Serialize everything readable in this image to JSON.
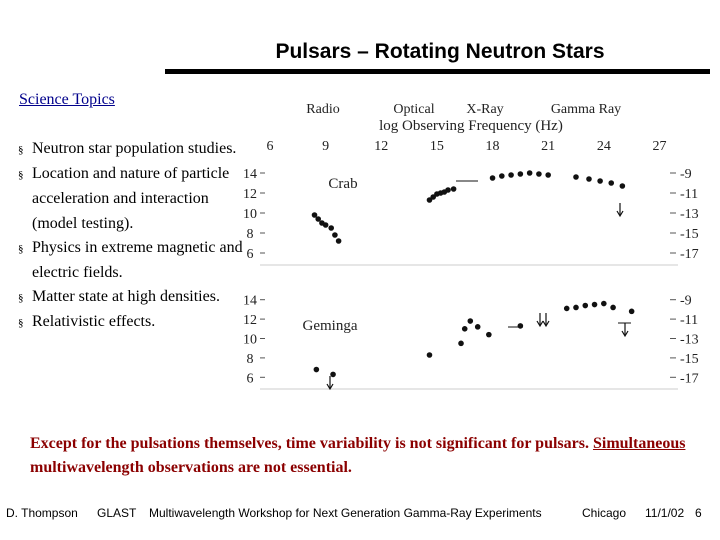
{
  "slide": {
    "title": "Pulsars – Rotating Neutron Stars",
    "section": "Science Topics",
    "topics": [
      "Neutron star population studies.",
      "Location and nature of particle acceleration and interaction (model testing).",
      "Physics in extreme magnetic and electric fields.",
      "Matter state at high densities.",
      "Relativistic effects."
    ],
    "bullet_glyph": "§",
    "note_part1": "Except for the pulsations themselves, time variability is not significant for pulsars.  ",
    "note_underlined": "Simultaneous",
    "note_part2": " multiwavelength observations are not essential."
  },
  "figure": {
    "band_labels": [
      "Radio",
      "Optical",
      "X-Ray",
      "Gamma Ray"
    ],
    "xlabel": "log Observing Frequency (Hz)",
    "x_ticks": [
      "6",
      "9",
      "12",
      "15",
      "18",
      "21",
      "24",
      "27"
    ],
    "left_ticks": [
      "14",
      "12",
      "10",
      "8",
      "6"
    ],
    "right_ticks": [
      "-9",
      "-11",
      "-13",
      "-15",
      "-17"
    ],
    "panels": [
      {
        "name": "Crab"
      },
      {
        "name": "Geminga"
      }
    ]
  },
  "chart_data": {
    "type": "scatter",
    "title": "",
    "xlabel": "log Observing Frequency (Hz)",
    "xlim": [
      6,
      28
    ],
    "ylim_left": [
      5,
      15
    ],
    "ylim_right": [
      -18,
      -8
    ],
    "panels": [
      {
        "name": "Crab",
        "x": [
          8.4,
          8.6,
          8.8,
          9.0,
          9.3,
          9.5,
          9.7,
          14.6,
          14.8,
          15.0,
          15.2,
          15.4,
          15.6,
          15.9,
          18.0,
          18.5,
          19.0,
          19.5,
          20.0,
          20.5,
          21.0,
          22.5,
          23.2,
          23.8,
          24.4,
          25.0
        ],
        "y": [
          9.8,
          9.4,
          9.0,
          8.8,
          8.5,
          7.8,
          7.2,
          11.3,
          11.6,
          11.9,
          12.0,
          12.1,
          12.3,
          12.4,
          13.5,
          13.7,
          13.8,
          13.9,
          14.0,
          13.9,
          13.8,
          13.6,
          13.4,
          13.2,
          13.0,
          12.7
        ]
      },
      {
        "name": "Geminga",
        "x": [
          8.5,
          9.4,
          14.6,
          16.3,
          16.5,
          16.8,
          17.2,
          17.8,
          19.5,
          22.0,
          22.5,
          23.0,
          23.5,
          24.0,
          24.5,
          25.5
        ],
        "y": [
          6.8,
          6.3,
          8.3,
          9.5,
          11.0,
          11.8,
          11.2,
          10.4,
          11.3,
          13.1,
          13.2,
          13.4,
          13.5,
          13.6,
          13.2,
          12.8
        ]
      }
    ]
  },
  "footer": {
    "author": "D. Thompson",
    "org": "GLAST",
    "event": "Multiwavelength Workshop for Next Generation Gamma-Ray Experiments",
    "city": "Chicago",
    "date": "11/1/02",
    "page": "6"
  }
}
